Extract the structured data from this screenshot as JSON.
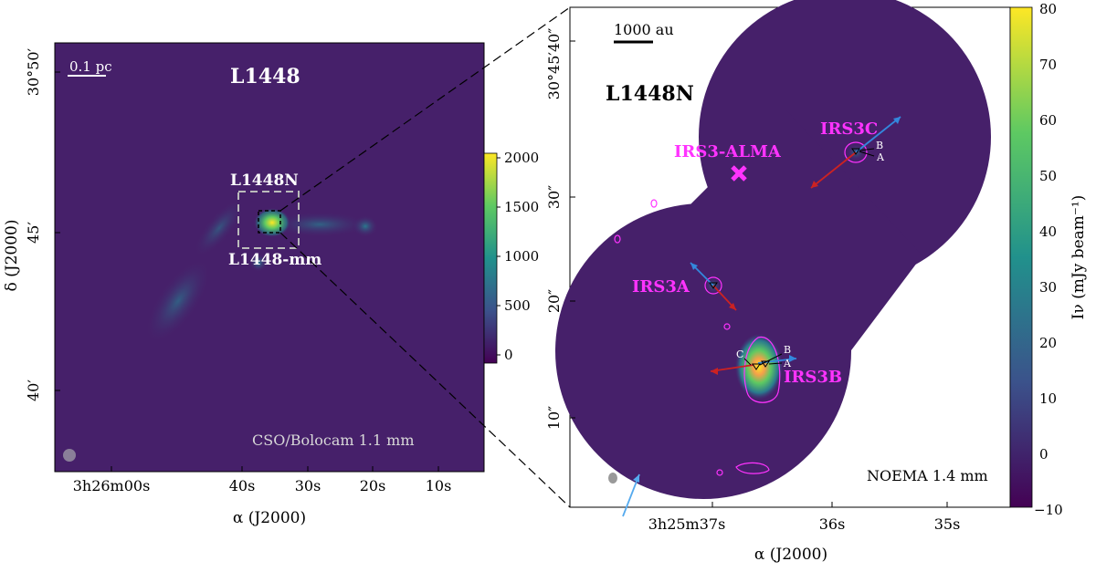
{
  "left_panel": {
    "field_label": "L1448",
    "scale_bar": "0.1 pc",
    "region_label": "L1448N",
    "source_label": "L1448-mm",
    "instrument": "CSO/Bolocam 1.1 mm",
    "dec_label": "δ (J2000)",
    "ra_label": "α (J2000)",
    "dec_ticks": [
      "30°50′",
      "45′",
      "40′"
    ],
    "ra_ticks": [
      "3h26m00s",
      "40s",
      "30s",
      "20s",
      "10s"
    ],
    "colorbar_ticks": [
      "2000",
      "1500",
      "1000",
      "500",
      "0"
    ]
  },
  "right_panel": {
    "field_label": "L1448N",
    "scale_bar": "1000 au",
    "instrument": "NOEMA 1.4 mm",
    "dec_ticks": [
      "30°45′40″",
      "30″",
      "20″",
      "10″"
    ],
    "ra_ticks": [
      "3h25m37s",
      "36s",
      "35s"
    ],
    "ra_label": "α (J2000)",
    "colorbar_label": "Iν (mJy beam⁻¹)",
    "colorbar_ticks": [
      "80",
      "70",
      "60",
      "50",
      "40",
      "30",
      "20",
      "10",
      "0",
      "−10"
    ],
    "sources": [
      {
        "name": "IRS3C",
        "components": [
          "B",
          "A"
        ]
      },
      {
        "name": "IRS3-ALMA",
        "components": []
      },
      {
        "name": "IRS3A",
        "components": []
      },
      {
        "name": "IRS3B",
        "components": [
          "C",
          "B",
          "A"
        ]
      }
    ]
  },
  "colors": {
    "map_bg": "#46206a",
    "magenta": "#ff33ff",
    "red_lobe": "#cc2222",
    "blue_lobe": "#3388dd",
    "peak": "#fde725"
  }
}
